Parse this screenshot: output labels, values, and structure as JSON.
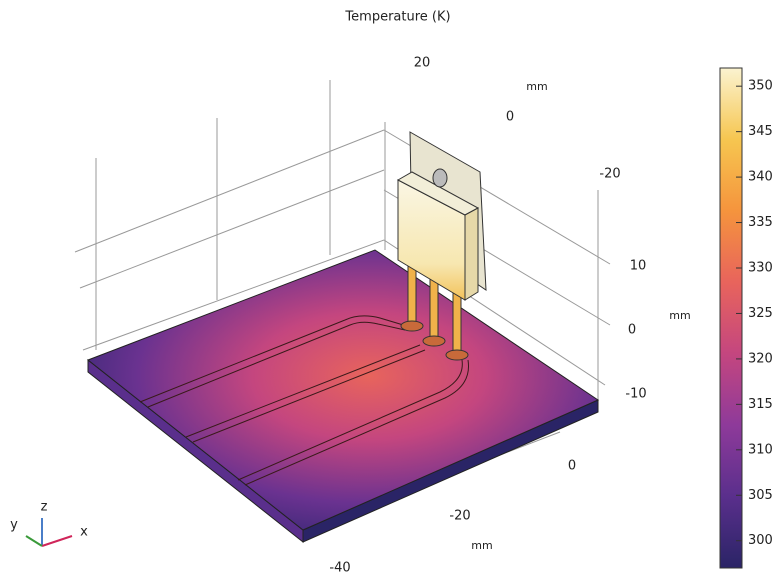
{
  "title": "Temperature (K)",
  "colorbar": {
    "lim": [
      297,
      352
    ],
    "ticks": [
      300,
      305,
      310,
      315,
      320,
      325,
      330,
      335,
      340,
      345,
      350
    ],
    "colors": [
      "#2a2466",
      "#5a2f8c",
      "#8e3a9a",
      "#c4467f",
      "#e8645c",
      "#f5943d",
      "#f6c650",
      "#fbf3d0"
    ]
  },
  "axes": [
    {
      "label": "mm",
      "ticks": [
        20,
        0,
        -20
      ]
    },
    {
      "label": "mm",
      "ticks": [
        10,
        0,
        -10
      ]
    },
    {
      "label": "mm",
      "ticks": [
        0,
        -20,
        -40
      ]
    }
  ],
  "triad": {
    "x": "x",
    "y": "y",
    "z": "z"
  }
}
